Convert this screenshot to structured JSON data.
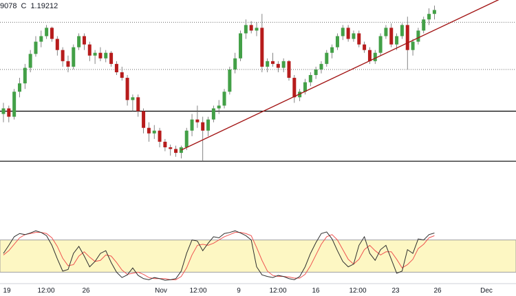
{
  "header": {
    "open_partial": "9078",
    "close_label": "C",
    "close_value": "1.19212"
  },
  "colors": {
    "up": "#43a047",
    "down": "#b71c1c",
    "trend": "#a31515",
    "stoch_k": "#2e2e2e",
    "stoch_d": "#ef5350",
    "stoch_band": "#fdf7c3"
  },
  "chart_data": {
    "type": "candlestick",
    "title": "",
    "xlabel": "",
    "ylabel": "",
    "x_ticks": [
      "19",
      "12:00",
      "26",
      "Nov",
      "12:00",
      "9",
      "12:00",
      "16",
      "12:00",
      "23",
      "26",
      "Dec"
    ],
    "price_range": [
      1.159,
      1.199
    ],
    "grid": false,
    "horizontal_levels": [
      {
        "price": 1.195,
        "style": "dotted"
      },
      {
        "price": 1.1865,
        "style": "dotted"
      },
      {
        "price": 1.179,
        "style": "solid"
      },
      {
        "price": 1.17,
        "style": "solid"
      }
    ],
    "trendline": {
      "from": [
        33,
        1.172
      ],
      "to": [
        94,
        1.2
      ]
    },
    "series": [
      {
        "values": [
          [
            1.1785,
            1.1805,
            1.177,
            1.1795
          ],
          [
            1.1795,
            1.18,
            1.177,
            1.178
          ],
          [
            1.178,
            1.183,
            1.1775,
            1.1825
          ],
          [
            1.1825,
            1.185,
            1.1815,
            1.184
          ],
          [
            1.184,
            1.1875,
            1.183,
            1.1868
          ],
          [
            1.1868,
            1.19,
            1.186,
            1.1893
          ],
          [
            1.1893,
            1.1925,
            1.1888,
            1.1915
          ],
          [
            1.1915,
            1.1935,
            1.1905,
            1.1925
          ],
          [
            1.1925,
            1.1945,
            1.192,
            1.194
          ],
          [
            1.194,
            1.1942,
            1.1915,
            1.192
          ],
          [
            1.192,
            1.1925,
            1.189,
            1.19
          ],
          [
            1.19,
            1.1905,
            1.187,
            1.188
          ],
          [
            1.188,
            1.189,
            1.186,
            1.187
          ],
          [
            1.187,
            1.191,
            1.1865,
            1.1905
          ],
          [
            1.1905,
            1.193,
            1.19,
            1.1925
          ],
          [
            1.1925,
            1.193,
            1.19,
            1.191
          ],
          [
            1.191,
            1.1915,
            1.188,
            1.189
          ],
          [
            1.189,
            1.19,
            1.1875,
            1.1895
          ],
          [
            1.1895,
            1.1905,
            1.188,
            1.1885
          ],
          [
            1.1885,
            1.19,
            1.1878,
            1.1895
          ],
          [
            1.1895,
            1.1898,
            1.187,
            1.1875
          ],
          [
            1.1875,
            1.188,
            1.1855,
            1.186
          ],
          [
            1.186,
            1.187,
            1.1845,
            1.185
          ],
          [
            1.185,
            1.1855,
            1.18,
            1.181
          ],
          [
            1.181,
            1.182,
            1.179,
            1.1815
          ],
          [
            1.1815,
            1.182,
            1.178,
            1.179
          ],
          [
            1.179,
            1.1795,
            1.175,
            1.176
          ],
          [
            1.176,
            1.177,
            1.1735,
            1.175
          ],
          [
            1.175,
            1.1765,
            1.174,
            1.1755
          ],
          [
            1.1755,
            1.176,
            1.1725,
            1.1735
          ],
          [
            1.1735,
            1.174,
            1.1718,
            1.1725
          ],
          [
            1.1725,
            1.173,
            1.171,
            1.1722
          ],
          [
            1.1722,
            1.1728,
            1.1708,
            1.1715
          ],
          [
            1.1715,
            1.1728,
            1.1705,
            1.1725
          ],
          [
            1.1725,
            1.176,
            1.172,
            1.1755
          ],
          [
            1.1755,
            1.1785,
            1.1745,
            1.1775
          ],
          [
            1.1775,
            1.18,
            1.176,
            1.177
          ],
          [
            1.177,
            1.178,
            1.17,
            1.1755
          ],
          [
            1.1755,
            1.178,
            1.1745,
            1.1775
          ],
          [
            1.1775,
            1.18,
            1.177,
            1.1795
          ],
          [
            1.1795,
            1.181,
            1.1785,
            1.18
          ],
          [
            1.18,
            1.183,
            1.1795,
            1.1825
          ],
          [
            1.1825,
            1.187,
            1.182,
            1.1865
          ],
          [
            1.1865,
            1.1895,
            1.1858,
            1.1885
          ],
          [
            1.1885,
            1.1935,
            1.188,
            1.193
          ],
          [
            1.193,
            1.1955,
            1.192,
            1.1945
          ],
          [
            1.1945,
            1.1952,
            1.193,
            1.1935
          ],
          [
            1.1935,
            1.195,
            1.1925,
            1.194
          ],
          [
            1.194,
            1.1965,
            1.186,
            1.187
          ],
          [
            1.187,
            1.1885,
            1.186,
            1.188
          ],
          [
            1.188,
            1.1895,
            1.187,
            1.1875
          ],
          [
            1.1875,
            1.188,
            1.186,
            1.1868
          ],
          [
            1.1868,
            1.1885,
            1.186,
            1.188
          ],
          [
            1.188,
            1.1882,
            1.1845,
            1.185
          ],
          [
            1.185,
            1.1855,
            1.1805,
            1.1815
          ],
          [
            1.1815,
            1.183,
            1.1808,
            1.1825
          ],
          [
            1.1825,
            1.1848,
            1.182,
            1.1842
          ],
          [
            1.1842,
            1.186,
            1.1835,
            1.1855
          ],
          [
            1.1855,
            1.187,
            1.1848,
            1.1865
          ],
          [
            1.1865,
            1.188,
            1.1858,
            1.1875
          ],
          [
            1.1875,
            1.19,
            1.187,
            1.1895
          ],
          [
            1.1895,
            1.191,
            1.1885,
            1.1905
          ],
          [
            1.1905,
            1.193,
            1.19,
            1.1925
          ],
          [
            1.1925,
            1.1945,
            1.1918,
            1.194
          ],
          [
            1.194,
            1.1945,
            1.1915,
            1.192
          ],
          [
            1.192,
            1.1935,
            1.1915,
            1.193
          ],
          [
            1.193,
            1.1935,
            1.1905,
            1.191
          ],
          [
            1.191,
            1.1915,
            1.1895,
            1.19
          ],
          [
            1.19,
            1.1905,
            1.1875,
            1.188
          ],
          [
            1.188,
            1.19,
            1.1875,
            1.1895
          ],
          [
            1.1895,
            1.193,
            1.189,
            1.1925
          ],
          [
            1.1925,
            1.1945,
            1.192,
            1.194
          ],
          [
            1.194,
            1.1948,
            1.1905,
            1.191
          ],
          [
            1.191,
            1.193,
            1.19,
            1.1925
          ],
          [
            1.1925,
            1.1948,
            1.192,
            1.1945
          ],
          [
            1.1945,
            1.196,
            1.1865,
            1.19
          ],
          [
            1.19,
            1.192,
            1.189,
            1.1915
          ],
          [
            1.1915,
            1.194,
            1.191,
            1.1935
          ],
          [
            1.1935,
            1.196,
            1.193,
            1.1955
          ],
          [
            1.1955,
            1.1975,
            1.1945,
            1.1965
          ],
          [
            1.1965,
            1.198,
            1.1955,
            1.1972
          ]
        ]
      }
    ],
    "stochastic": {
      "range": [
        0,
        100
      ],
      "band": [
        20,
        80
      ],
      "k": [
        55,
        70,
        86,
        92,
        90,
        93,
        97,
        94,
        88,
        70,
        45,
        22,
        25,
        55,
        68,
        50,
        30,
        40,
        55,
        60,
        38,
        20,
        10,
        15,
        28,
        14,
        8,
        6,
        10,
        8,
        5,
        6,
        8,
        22,
        55,
        80,
        78,
        60,
        74,
        86,
        84,
        92,
        94,
        97,
        93,
        88,
        80,
        30,
        15,
        12,
        10,
        14,
        12,
        8,
        6,
        12,
        30,
        55,
        75,
        92,
        95,
        82,
        60,
        40,
        30,
        35,
        70,
        86,
        55,
        42,
        62,
        70,
        44,
        18,
        22,
        62,
        55,
        82,
        80,
        90,
        93
      ],
      "d": [
        52,
        60,
        72,
        84,
        90,
        92,
        94,
        94,
        92,
        84,
        68,
        46,
        32,
        34,
        50,
        58,
        48,
        40,
        42,
        52,
        50,
        38,
        24,
        16,
        18,
        20,
        16,
        10,
        8,
        8,
        8,
        6,
        6,
        12,
        28,
        52,
        70,
        72,
        70,
        74,
        80,
        86,
        90,
        94,
        94,
        92,
        88,
        66,
        42,
        22,
        14,
        12,
        12,
        11,
        9,
        9,
        16,
        32,
        52,
        72,
        86,
        90,
        80,
        62,
        44,
        35,
        44,
        62,
        70,
        60,
        52,
        58,
        58,
        44,
        28,
        34,
        44,
        64,
        72,
        84,
        88
      ]
    }
  }
}
